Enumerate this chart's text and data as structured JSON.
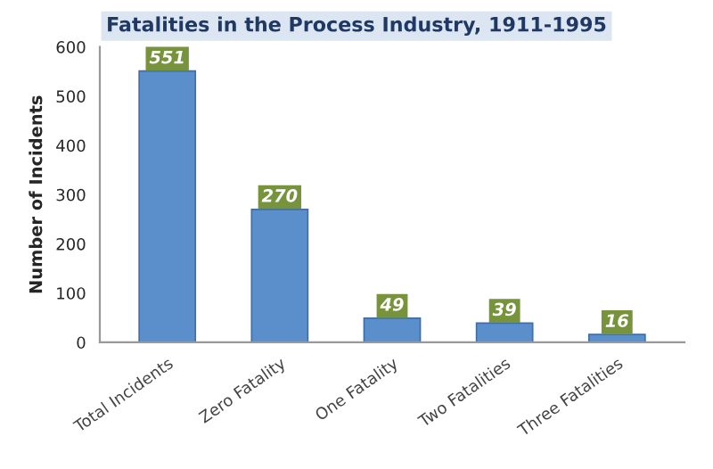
{
  "chart_data": {
    "type": "bar",
    "title": "Fatalities in the Process Industry, 1911-1995",
    "ylabel": "Number of Incidents",
    "categories": [
      "Total Incidents",
      "Zero Fatality",
      "One Fatality",
      "Two Fatalities",
      "Three Fatalities"
    ],
    "values": [
      551,
      270,
      49,
      39,
      16
    ],
    "color": "#5b8fcb",
    "ylim": [
      0,
      600
    ],
    "yticks": [
      0,
      100,
      200,
      300,
      400,
      500,
      600
    ],
    "grid": false,
    "legend": false,
    "data_labels": true
  }
}
